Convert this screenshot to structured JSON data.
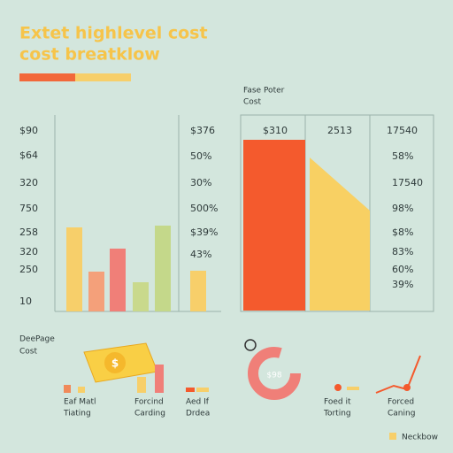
{
  "header": {
    "title": "Extet highlevel cost",
    "subtitle": "cost breatklow"
  },
  "left_panel": {
    "axis_labels": [
      "$90",
      "$64",
      "320",
      "750",
      "258",
      "320",
      "250",
      "10"
    ],
    "right_labels": [
      "$376",
      "50%",
      "30%",
      "500%",
      "$39%",
      "43%"
    ]
  },
  "right_panel": {
    "title": "Fase Poter",
    "subtitle": "Cost",
    "header_labels": [
      "$310",
      "2513",
      "17540"
    ],
    "right_labels": [
      "58%",
      "17540",
      "98%",
      "$8%",
      "83%",
      "60%",
      "39%"
    ]
  },
  "bottom": {
    "title": "DeePage",
    "subtitle": "Cost",
    "items": [
      {
        "label": "Eaf Matl",
        "sublabel": "Tiating"
      },
      {
        "label": "Forcind",
        "sublabel": "Carding"
      },
      {
        "label": "Aed If",
        "sublabel": "Drdea"
      },
      {
        "label": "Foed it",
        "sublabel": "Torting"
      },
      {
        "label": "Forced",
        "sublabel": "Caning"
      }
    ],
    "gauge_label": "$98",
    "legend": "Neckbow"
  }
}
